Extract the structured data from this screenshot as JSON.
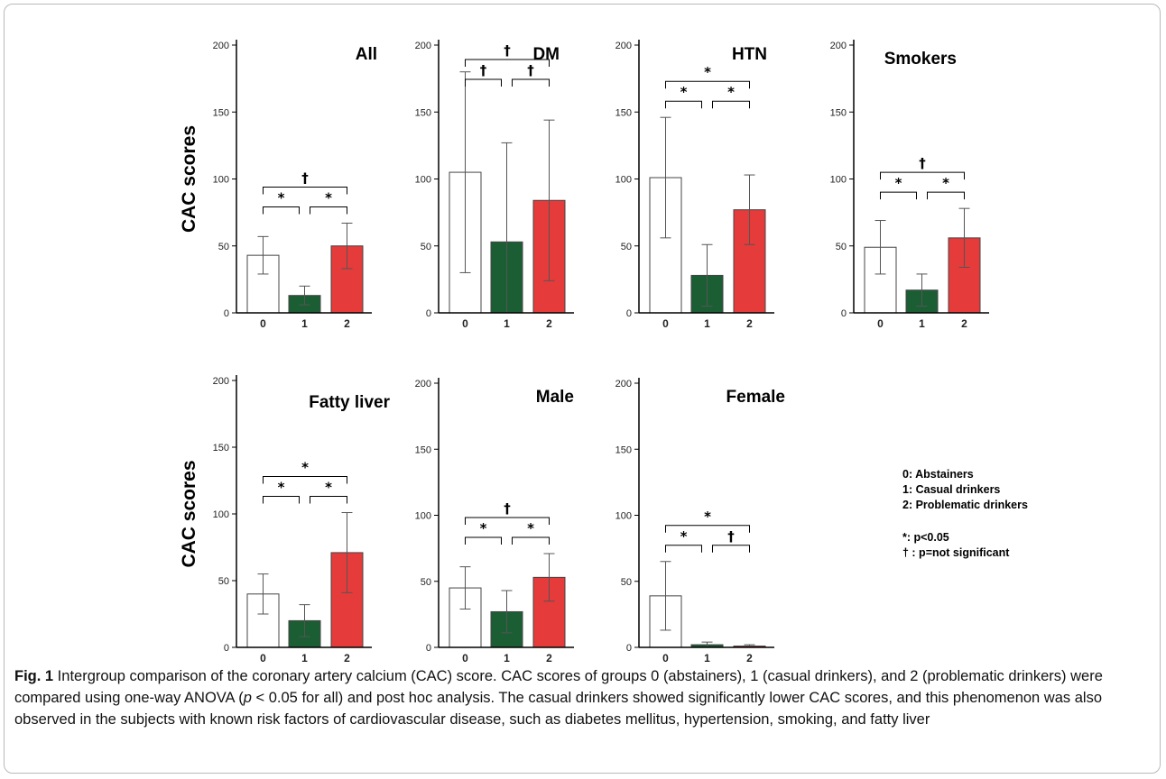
{
  "colors": {
    "group0": "#ffffff",
    "group1": "#1b5e34",
    "group2": "#e53b3b",
    "axis": "#000000",
    "error": "#555555"
  },
  "chart_data": [
    {
      "type": "bar",
      "title": "All",
      "ylabel": "CAC scores",
      "ylim": [
        0,
        200
      ],
      "yticks": [
        0,
        50,
        100,
        150,
        200
      ],
      "categories": [
        "0",
        "1",
        "2"
      ],
      "values": [
        43,
        13,
        50
      ],
      "errors": [
        14,
        7,
        17
      ],
      "comparisons": [
        {
          "from": 0,
          "to": 1,
          "label": "*"
        },
        {
          "from": 1,
          "to": 2,
          "label": "*"
        },
        {
          "from": 0,
          "to": 2,
          "label": "†"
        }
      ]
    },
    {
      "type": "bar",
      "title": "DM",
      "ylabel": "",
      "ylim": [
        0,
        200
      ],
      "yticks": [
        0,
        50,
        100,
        150,
        200
      ],
      "categories": [
        "0",
        "1",
        "2"
      ],
      "values": [
        105,
        53,
        84
      ],
      "errors": [
        75,
        74,
        60
      ],
      "comparisons": [
        {
          "from": 0,
          "to": 1,
          "label": "†"
        },
        {
          "from": 1,
          "to": 2,
          "label": "†"
        },
        {
          "from": 0,
          "to": 2,
          "label": "†"
        }
      ]
    },
    {
      "type": "bar",
      "title": "HTN",
      "ylabel": "",
      "ylim": [
        0,
        200
      ],
      "yticks": [
        0,
        50,
        100,
        150,
        200
      ],
      "categories": [
        "0",
        "1",
        "2"
      ],
      "values": [
        101,
        28,
        77
      ],
      "errors": [
        45,
        23,
        26
      ],
      "comparisons": [
        {
          "from": 0,
          "to": 1,
          "label": "*"
        },
        {
          "from": 1,
          "to": 2,
          "label": "*"
        },
        {
          "from": 0,
          "to": 2,
          "label": "*"
        }
      ]
    },
    {
      "type": "bar",
      "title": "Smokers",
      "ylabel": "",
      "ylim": [
        0,
        200
      ],
      "yticks": [
        0,
        50,
        100,
        150,
        200
      ],
      "categories": [
        "0",
        "1",
        "2"
      ],
      "values": [
        49,
        17,
        56
      ],
      "errors": [
        20,
        12,
        22
      ],
      "comparisons": [
        {
          "from": 0,
          "to": 1,
          "label": "*"
        },
        {
          "from": 1,
          "to": 2,
          "label": "*"
        },
        {
          "from": 0,
          "to": 2,
          "label": "†"
        }
      ]
    },
    {
      "type": "bar",
      "title": "Fatty liver",
      "ylabel": "CAC scores",
      "ylim": [
        0,
        200
      ],
      "yticks": [
        0,
        50,
        100,
        150,
        200
      ],
      "categories": [
        "0",
        "1",
        "2"
      ],
      "values": [
        40,
        20,
        71
      ],
      "errors": [
        15,
        12,
        30
      ],
      "comparisons": [
        {
          "from": 0,
          "to": 1,
          "label": "*"
        },
        {
          "from": 1,
          "to": 2,
          "label": "*"
        },
        {
          "from": 0,
          "to": 2,
          "label": "*"
        }
      ]
    },
    {
      "type": "bar",
      "title": "Male",
      "ylabel": "",
      "ylim": [
        0,
        200
      ],
      "yticks": [
        0,
        50,
        100,
        150,
        200
      ],
      "categories": [
        "0",
        "1",
        "2"
      ],
      "values": [
        45,
        27,
        53
      ],
      "errors": [
        16,
        16,
        18
      ],
      "comparisons": [
        {
          "from": 0,
          "to": 1,
          "label": "*"
        },
        {
          "from": 1,
          "to": 2,
          "label": "*"
        },
        {
          "from": 0,
          "to": 2,
          "label": "†"
        }
      ]
    },
    {
      "type": "bar",
      "title": "Female",
      "ylabel": "",
      "ylim": [
        0,
        200
      ],
      "yticks": [
        0,
        50,
        100,
        150,
        200
      ],
      "categories": [
        "0",
        "1",
        "2"
      ],
      "values": [
        39,
        2,
        1
      ],
      "errors": [
        26,
        2,
        1
      ],
      "comparisons": [
        {
          "from": 0,
          "to": 1,
          "label": "*"
        },
        {
          "from": 1,
          "to": 2,
          "label": "†"
        },
        {
          "from": 0,
          "to": 2,
          "label": "*"
        }
      ]
    }
  ],
  "legend": {
    "groups": [
      "0: Abstainers",
      "1: Casual drinkers",
      "2: Problematic drinkers"
    ],
    "significance": [
      "*: p<0.05",
      "† : p=not significant"
    ]
  },
  "caption": {
    "label": "Fig. 1",
    "part1": " Intergroup comparison of the coronary artery calcium (CAC) score. CAC scores of groups 0 (abstainers), 1 (casual drinkers), and 2 (problematic drinkers) were compared using one-way ANOVA (",
    "p": "p",
    "part2": " < 0.05 for all) and post hoc analysis. The casual drinkers showed significantly lower CAC scores, and this phenomenon was also observed in the subjects with known risk factors of cardiovascular disease, such as diabetes mellitus, hypertension, smoking, and fatty liver"
  }
}
